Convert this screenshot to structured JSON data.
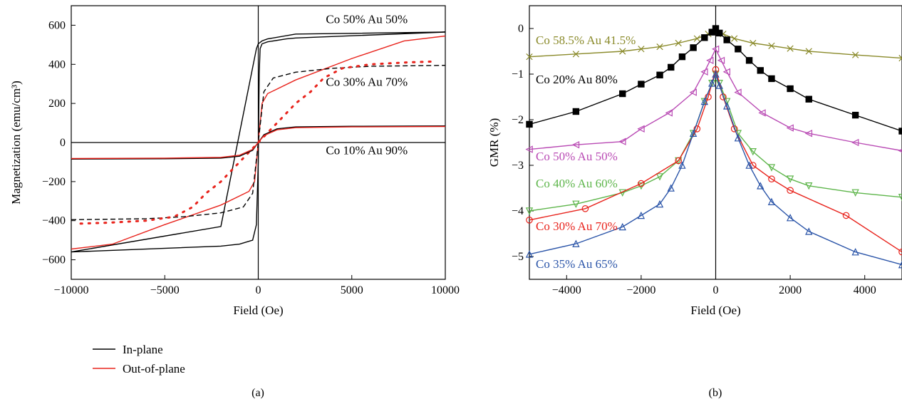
{
  "panel_labels": [
    "(a)",
    "(b)"
  ],
  "legend": [
    {
      "label": "In-plane",
      "color": "#000000"
    },
    {
      "label": "Out-of-plane",
      "color": "#e8231c"
    }
  ],
  "chart_data": [
    {
      "type": "line",
      "panel": "(a)",
      "xlabel": "Field (Oe)",
      "ylabel": "Magnetization (emu/cm³)",
      "xlim": [
        -10000,
        10000
      ],
      "ylim": [
        -700,
        700
      ],
      "xticks": [
        -10000,
        -5000,
        0,
        5000,
        10000
      ],
      "yticks": [
        -600,
        -400,
        -200,
        0,
        200,
        400,
        600
      ],
      "xtick_labels": [
        "−10000",
        "−5000",
        "0",
        "5000",
        "10000"
      ],
      "ytick_labels": [
        "−600",
        "−400",
        "−200",
        "0",
        "200",
        "400",
        "600"
      ],
      "annotations": [
        {
          "text": "Co 50% Au 50%",
          "x": 5800,
          "y": 610
        },
        {
          "text": "Co 30% Au 70%",
          "x": 5800,
          "y": 290
        },
        {
          "text": "Co 10% Au 90%",
          "x": 5800,
          "y": -60
        }
      ],
      "series": [
        {
          "sample": "Co 50% Au 50%",
          "orientation": "In-plane",
          "color": "#000000",
          "style": "solid",
          "x": [
            -10000,
            -2000,
            -1000,
            -300,
            -100,
            0,
            50,
            100,
            200,
            500,
            1500,
            2000,
            10000,
            2000,
            500,
            200,
            0,
            -100,
            -2000,
            -10000
          ],
          "y": [
            -560,
            -530,
            -520,
            -500,
            -420,
            -100,
            350,
            480,
            505,
            515,
            530,
            535,
            565,
            555,
            530,
            520,
            505,
            480,
            -430,
            -560
          ]
        },
        {
          "sample": "Co 50% Au 50%",
          "orientation": "Out-of-plane",
          "color": "#e8231c",
          "style": "solid",
          "x": [
            -10000,
            -7800,
            -5000,
            -2000,
            -500,
            -200,
            0,
            200,
            500,
            2000,
            5000,
            7800,
            10000
          ],
          "y": [
            -545,
            -520,
            -420,
            -320,
            -250,
            -200,
            0,
            200,
            250,
            320,
            430,
            520,
            545
          ]
        },
        {
          "sample": "Co 30% Au 70%",
          "orientation": "In-plane",
          "color": "#000000",
          "style": "dashed",
          "x": [
            -10000,
            -6000,
            -4000,
            -2000,
            -800,
            -300,
            0,
            300,
            800,
            2000,
            4000,
            6000,
            10000
          ],
          "y": [
            -395,
            -390,
            -380,
            -360,
            -330,
            -260,
            0,
            260,
            330,
            360,
            380,
            390,
            395
          ]
        },
        {
          "sample": "Co 30% Au 70%",
          "orientation": "Out-of-plane",
          "color": "#e8231c",
          "style": "dotted",
          "x": [
            -9500,
            -8000,
            -6000,
            -4500,
            -3500,
            -2800,
            -2000,
            -1500,
            -1000,
            -500,
            0,
            500,
            1000,
            1500,
            2000,
            2800,
            3500,
            4500,
            6000,
            8000,
            9500
          ],
          "y": [
            -415,
            -410,
            -400,
            -380,
            -330,
            -260,
            -200,
            -150,
            -100,
            -50,
            0,
            50,
            100,
            150,
            200,
            260,
            330,
            380,
            400,
            410,
            415
          ]
        },
        {
          "sample": "Co 10% Au 90%",
          "orientation": "In-plane",
          "color": "#000000",
          "style": "solid",
          "x": [
            -10000,
            -5000,
            -2000,
            -1000,
            -300,
            0,
            300,
            1000,
            2000,
            5000,
            10000
          ],
          "y": [
            -85,
            -83,
            -80,
            -70,
            -40,
            0,
            40,
            70,
            80,
            83,
            85
          ]
        },
        {
          "sample": "Co 10% Au 90%",
          "orientation": "Out-of-plane",
          "color": "#e8231c",
          "style": "solid",
          "x": [
            -10000,
            -5000,
            -2000,
            -1000,
            -300,
            0,
            300,
            1000,
            2000,
            5000,
            10000
          ],
          "y": [
            -82,
            -80,
            -76,
            -65,
            -35,
            0,
            35,
            65,
            76,
            80,
            82
          ]
        }
      ]
    },
    {
      "type": "line",
      "panel": "(b)",
      "xlabel": "Field (Oe)",
      "ylabel": "GMR (%)",
      "xlim": [
        -5000,
        5000
      ],
      "ylim": [
        -5.5,
        0.5
      ],
      "xticks": [
        -4000,
        -2000,
        0,
        2000,
        4000
      ],
      "yticks": [
        0,
        -1,
        -2,
        -3,
        -4,
        -5
      ],
      "xtick_labels": [
        "−4000",
        "−2000",
        "0",
        "2000",
        "4000"
      ],
      "ytick_labels": [
        "0",
        "−1",
        "−2",
        "−3",
        "−4",
        "−5"
      ],
      "series": [
        {
          "name": "Co 58.5% Au 41.5%",
          "color": "#8a8a2a",
          "marker": "x",
          "x": [
            -5000,
            -3750,
            -2500,
            -2000,
            -1500,
            -1000,
            -500,
            -200,
            0,
            200,
            500,
            1000,
            1500,
            2000,
            2500,
            3750,
            5000
          ],
          "y": [
            -0.62,
            -0.56,
            -0.5,
            -0.45,
            -0.4,
            -0.32,
            -0.22,
            -0.12,
            -0.05,
            -0.12,
            -0.22,
            -0.32,
            -0.38,
            -0.44,
            -0.5,
            -0.58,
            -0.65
          ]
        },
        {
          "name": "Co 20% Au 80%",
          "color": "#000000",
          "marker": "square",
          "x": [
            -5000,
            -3750,
            -2500,
            -2000,
            -1500,
            -1200,
            -900,
            -600,
            -300,
            -100,
            0,
            100,
            300,
            600,
            900,
            1200,
            1500,
            2000,
            2500,
            3750,
            5000
          ],
          "y": [
            -2.1,
            -1.82,
            -1.43,
            -1.22,
            -1.02,
            -0.85,
            -0.62,
            -0.42,
            -0.2,
            -0.08,
            0.0,
            -0.1,
            -0.25,
            -0.45,
            -0.7,
            -0.92,
            -1.1,
            -1.32,
            -1.55,
            -1.9,
            -2.25
          ]
        },
        {
          "name": "Co 50% Au 50%",
          "color": "#b94ab4",
          "marker": "triangle-left",
          "x": [
            -5000,
            -3750,
            -2500,
            -2000,
            -1250,
            -600,
            -300,
            -150,
            0,
            150,
            300,
            600,
            1250,
            2000,
            2500,
            3750,
            5000
          ],
          "y": [
            -2.65,
            -2.55,
            -2.48,
            -2.2,
            -1.85,
            -1.4,
            -0.95,
            -0.7,
            -0.45,
            -0.7,
            -0.95,
            -1.4,
            -1.85,
            -2.18,
            -2.3,
            -2.5,
            -2.68
          ]
        },
        {
          "name": "Co 40% Au 60%",
          "color": "#5db54a",
          "marker": "triangle-down",
          "x": [
            -5000,
            -3750,
            -2500,
            -2000,
            -1500,
            -1000,
            -600,
            -300,
            -100,
            0,
            100,
            300,
            600,
            1000,
            1500,
            2000,
            2500,
            3750,
            5000
          ],
          "y": [
            -4.0,
            -3.85,
            -3.6,
            -3.45,
            -3.25,
            -2.9,
            -2.3,
            -1.6,
            -1.2,
            -1.0,
            -1.2,
            -1.6,
            -2.3,
            -2.7,
            -3.05,
            -3.3,
            -3.45,
            -3.6,
            -3.7
          ]
        },
        {
          "name": "Co 30% Au 70%",
          "color": "#e8231c",
          "marker": "circle",
          "x": [
            -5000,
            -3500,
            -2000,
            -1000,
            -500,
            -200,
            0,
            200,
            500,
            1000,
            1500,
            2000,
            3500,
            5000
          ],
          "y": [
            -4.2,
            -3.95,
            -3.4,
            -2.9,
            -2.2,
            -1.5,
            -0.9,
            -1.5,
            -2.2,
            -3.0,
            -3.3,
            -3.55,
            -4.1,
            -4.9
          ]
        },
        {
          "name": "Co 35% Au 65%",
          "color": "#2a54a8",
          "marker": "triangle-up",
          "x": [
            -5000,
            -3750,
            -2500,
            -2000,
            -1500,
            -1200,
            -900,
            -600,
            -300,
            -100,
            0,
            100,
            300,
            600,
            900,
            1200,
            1500,
            2000,
            2500,
            3750,
            5000
          ],
          "y": [
            -4.95,
            -4.72,
            -4.35,
            -4.1,
            -3.85,
            -3.5,
            -3.0,
            -2.3,
            -1.6,
            -1.2,
            -1.0,
            -1.25,
            -1.7,
            -2.4,
            -3.0,
            -3.45,
            -3.8,
            -4.15,
            -4.45,
            -4.9,
            -5.18
          ]
        }
      ]
    }
  ]
}
